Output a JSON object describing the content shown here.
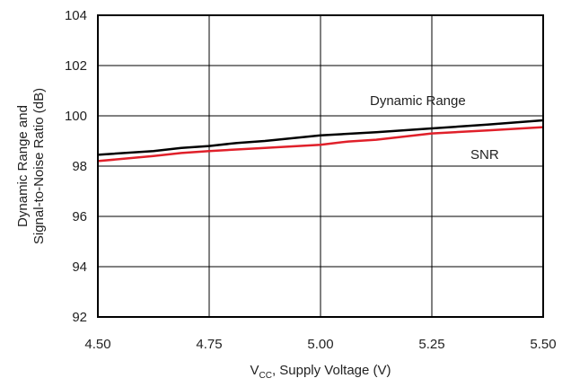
{
  "chart_data": {
    "type": "line",
    "title": "",
    "ylabel_line1": "Dynamic Range and",
    "ylabel_line2": "Signal-to-Noise Ratio (dB)",
    "xlabel_main": "V",
    "xlabel_sub": "CC",
    "xlabel_rest": ", Supply Voltage (V)",
    "xlim": [
      4.5,
      5.5
    ],
    "ylim": [
      92,
      104
    ],
    "xticks": [
      "4.50",
      "4.75",
      "5.00",
      "5.25",
      "5.50"
    ],
    "yticks": [
      "92",
      "94",
      "96",
      "98",
      "100",
      "102",
      "104"
    ],
    "grid": true,
    "series": [
      {
        "name": "Dynamic Range",
        "color": "#000000",
        "x": [
          4.5,
          4.625,
          4.6875,
          4.75,
          4.8125,
          4.875,
          5.0,
          5.125,
          5.25,
          5.375,
          5.5
        ],
        "y": [
          98.45,
          98.6,
          98.72,
          98.8,
          98.92,
          99.0,
          99.22,
          99.35,
          99.5,
          99.65,
          99.82
        ]
      },
      {
        "name": "SNR",
        "color": "#e0202a",
        "x": [
          4.5,
          4.625,
          4.6875,
          4.75,
          4.875,
          5.0,
          5.0625,
          5.125,
          5.25,
          5.375,
          5.5
        ],
        "y": [
          98.2,
          98.4,
          98.52,
          98.6,
          98.72,
          98.85,
          98.98,
          99.05,
          99.3,
          99.42,
          99.55
        ]
      }
    ]
  }
}
